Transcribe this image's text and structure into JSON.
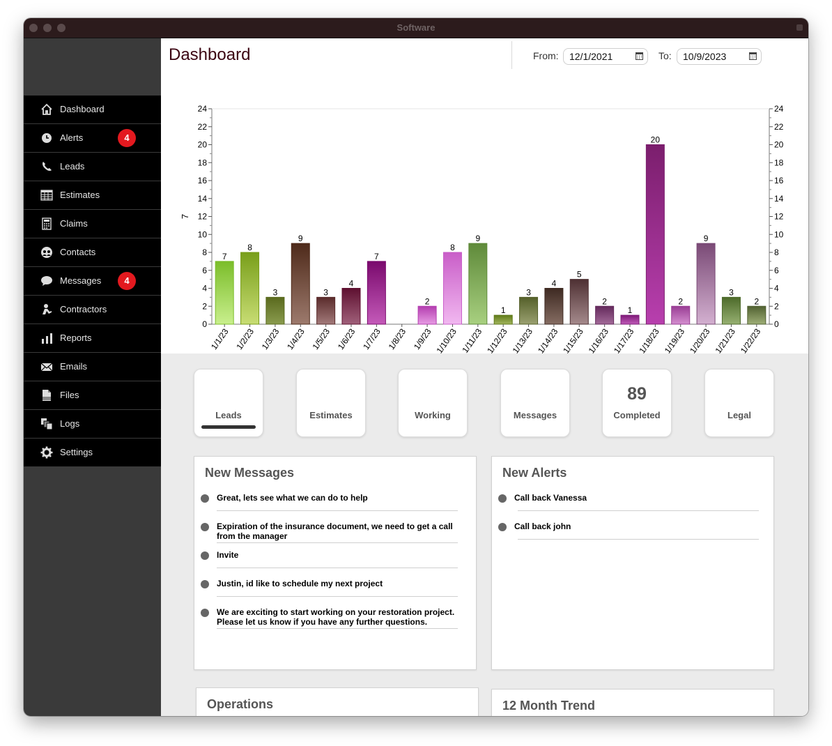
{
  "window": {
    "title": "Software"
  },
  "sidebar": {
    "items": [
      {
        "label": "Dashboard",
        "icon": "home-icon"
      },
      {
        "label": "Alerts",
        "icon": "clock-icon",
        "badge": "4"
      },
      {
        "label": "Leads",
        "icon": "phone-icon"
      },
      {
        "label": "Estimates",
        "icon": "table-icon"
      },
      {
        "label": "Claims",
        "icon": "calculator-icon"
      },
      {
        "label": "Contacts",
        "icon": "people-icon"
      },
      {
        "label": "Messages",
        "icon": "speech-bubble-icon",
        "badge": "4"
      },
      {
        "label": "Contractors",
        "icon": "worker-icon"
      },
      {
        "label": "Reports",
        "icon": "bar-chart-icon"
      },
      {
        "label": "Emails",
        "icon": "envelope-icon"
      },
      {
        "label": "Files",
        "icon": "pdf-file-icon"
      },
      {
        "label": "Logs",
        "icon": "copy-icon"
      },
      {
        "label": "Settings",
        "icon": "gear-icon"
      }
    ]
  },
  "header": {
    "title": "Dashboard",
    "from_label": "From:",
    "from_value": "12/1/2021",
    "to_label": "To:",
    "to_value": "10/9/2023"
  },
  "chart_data": {
    "type": "bar",
    "ylabel": "7",
    "ylim": [
      0,
      24
    ],
    "y_ticks": [
      0,
      2,
      4,
      6,
      8,
      10,
      12,
      14,
      16,
      18,
      20,
      22,
      24
    ],
    "grid": false,
    "data_labels": true,
    "categories": [
      "1/1/23",
      "1/2/23",
      "1/3/23",
      "1/4/23",
      "1/5/23",
      "1/6/23",
      "1/7/23",
      "1/8/23",
      "1/9/23",
      "1/10/23",
      "1/11/23",
      "1/12/23",
      "1/13/23",
      "1/14/23",
      "1/15/23",
      "1/16/23",
      "1/17/23",
      "1/18/23",
      "1/19/23",
      "1/20/23",
      "1/21/23",
      "1/22/23"
    ],
    "values": [
      7,
      8,
      3,
      9,
      3,
      4,
      7,
      0,
      2,
      8,
      9,
      1,
      3,
      4,
      5,
      2,
      1,
      20,
      2,
      9,
      3,
      2
    ],
    "colors": [
      [
        "#7bbd2a",
        "#c9ef8d"
      ],
      [
        "#789e1a",
        "#c8dd74"
      ],
      [
        "#5a6a1e",
        "#8a9b4e"
      ],
      [
        "#4e2a1a",
        "#9d7a6d"
      ],
      [
        "#5a2b2b",
        "#a27a7a"
      ],
      [
        "#5e1030",
        "#a0607a"
      ],
      [
        "#7a0a6d",
        "#c45ab9"
      ],
      [
        "#999999",
        "#cccccc"
      ],
      [
        "#b43eb0",
        "#e69be3"
      ],
      [
        "#c95ec8",
        "#f1b8f0"
      ],
      [
        "#5f8a3a",
        "#a8d080"
      ],
      [
        "#5f7a18",
        "#a3b55e"
      ],
      [
        "#55602a",
        "#9aa070"
      ],
      [
        "#3e2a22",
        "#856c62"
      ],
      [
        "#4e3033",
        "#a58a8c"
      ],
      [
        "#642a5c",
        "#a26a98"
      ],
      [
        "#7e1a78",
        "#c05ab8"
      ],
      [
        "#7b1e6d",
        "#b83fae"
      ],
      [
        "#993d94",
        "#d48ecf"
      ],
      [
        "#7a4a76",
        "#d3b0d0"
      ],
      [
        "#4d6a2a",
        "#96b071"
      ],
      [
        "#516132",
        "#9eae76"
      ]
    ]
  },
  "cards": [
    {
      "label": "Leads",
      "value": "",
      "active": true
    },
    {
      "label": "Estimates",
      "value": ""
    },
    {
      "label": "Working",
      "value": ""
    },
    {
      "label": "Messages",
      "value": ""
    },
    {
      "label": "Completed",
      "value": "89"
    },
    {
      "label": "Legal",
      "value": ""
    }
  ],
  "new_messages": {
    "title": "New Messages",
    "items": [
      {
        "text": "Great, lets see what we can do to help"
      },
      {
        "text": "Expiration of the insurance document, we need to get a call from the manager"
      },
      {
        "text": "Invite"
      },
      {
        "text": "Justin, id like to schedule my next project"
      },
      {
        "text": "We are exciting to start working on your restoration project. Please let us know if you have any further questions."
      }
    ]
  },
  "new_alerts": {
    "title": "New Alerts",
    "items": [
      {
        "text": "Call back Vanessa"
      },
      {
        "text": "Call back john"
      }
    ]
  },
  "operations": {
    "title": "Operations"
  },
  "trend": {
    "title": "12 Month Trend"
  }
}
